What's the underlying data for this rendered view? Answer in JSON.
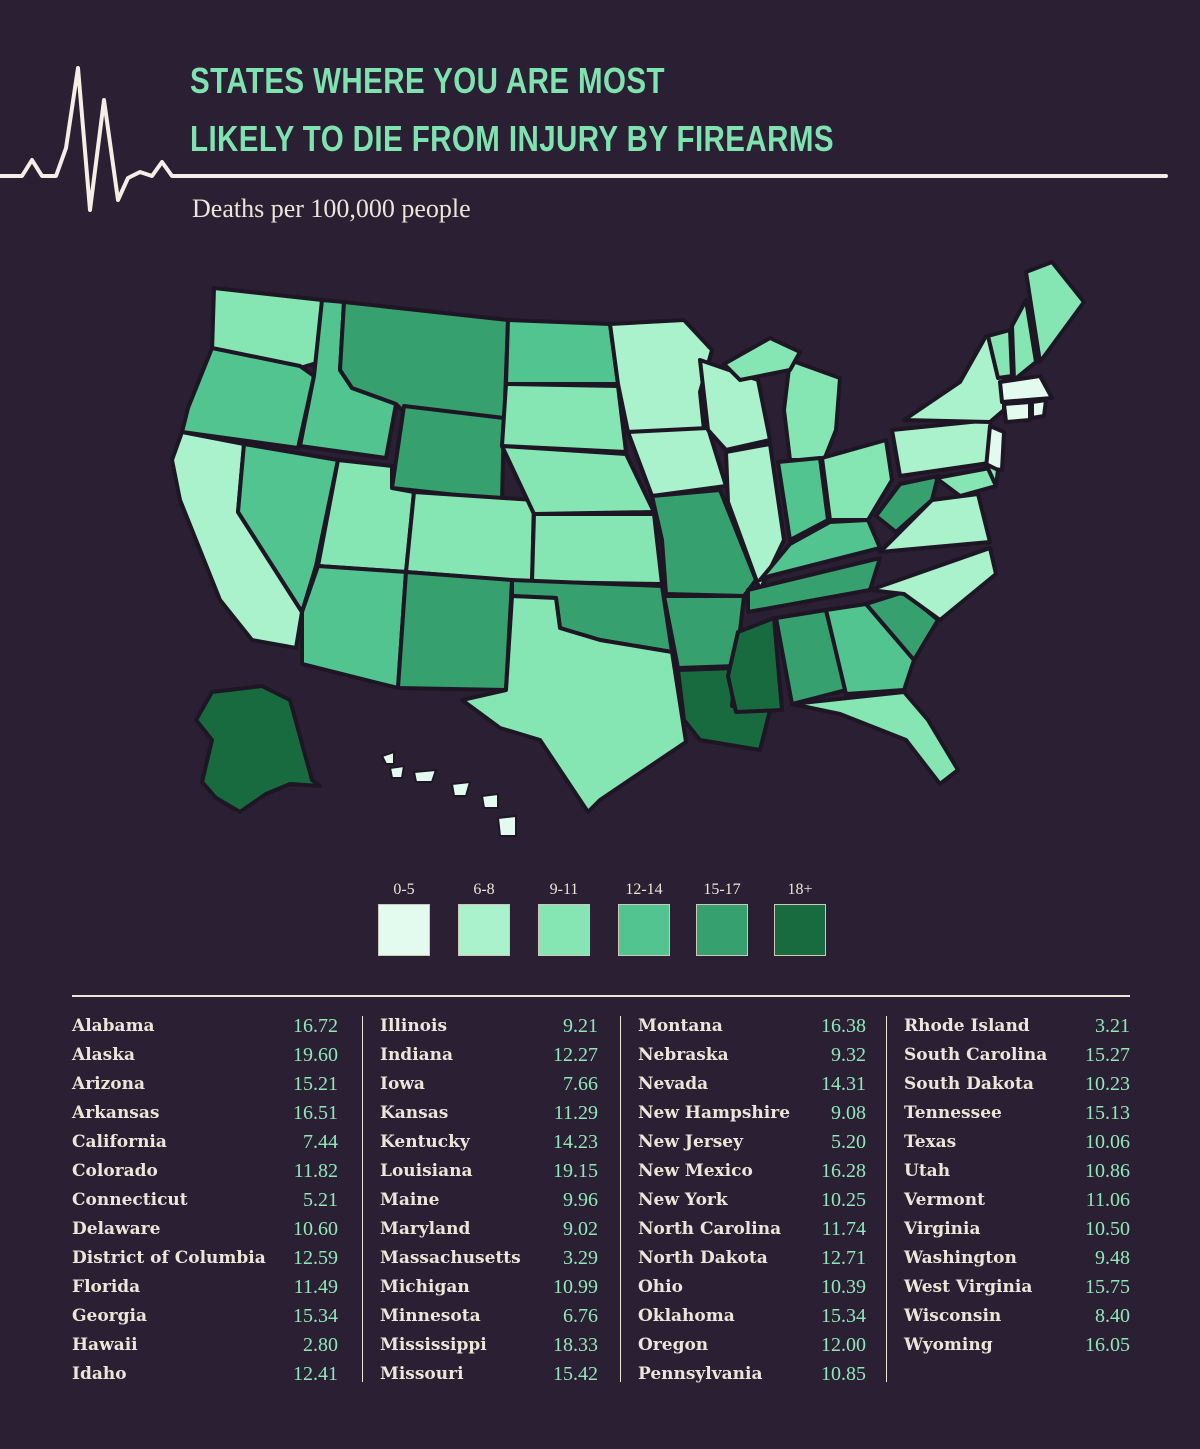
{
  "title_lines": [
    "STATES WHERE YOU ARE MOST",
    "LIKELY TO DIE FROM INJURY BY FIREARMS"
  ],
  "subtitle": "Deaths per 100,000 people",
  "colors": {
    "background": "#2a1f33",
    "title": "#7fe3b0",
    "text": "#ece6d8",
    "value": "#8fe8b8",
    "bins": [
      "#e2fbee",
      "#a9f2cb",
      "#86e6b3",
      "#52c48f",
      "#36a06e",
      "#176b3f"
    ]
  },
  "legend": [
    {
      "label": "0-5",
      "color": "#e2fbee"
    },
    {
      "label": "6-8",
      "color": "#a9f2cb"
    },
    {
      "label": "9-11",
      "color": "#86e6b3"
    },
    {
      "label": "12-14",
      "color": "#52c48f"
    },
    {
      "label": "15-17",
      "color": "#36a06e"
    },
    {
      "label": "18+",
      "color": "#176b3f"
    }
  ],
  "states": [
    {
      "name": "Alabama",
      "value": "16.72"
    },
    {
      "name": "Alaska",
      "value": "19.60"
    },
    {
      "name": "Arizona",
      "value": "15.21"
    },
    {
      "name": "Arkansas",
      "value": "16.51"
    },
    {
      "name": "California",
      "value": "7.44"
    },
    {
      "name": "Colorado",
      "value": "11.82"
    },
    {
      "name": "Connecticut",
      "value": "5.21"
    },
    {
      "name": "Delaware",
      "value": "10.60"
    },
    {
      "name": "District of Columbia",
      "value": "12.59"
    },
    {
      "name": "Florida",
      "value": "11.49"
    },
    {
      "name": "Georgia",
      "value": "15.34"
    },
    {
      "name": "Hawaii",
      "value": "2.80"
    },
    {
      "name": "Idaho",
      "value": "12.41"
    },
    {
      "name": "Illinois",
      "value": "9.21"
    },
    {
      "name": "Indiana",
      "value": "12.27"
    },
    {
      "name": "Iowa",
      "value": "7.66"
    },
    {
      "name": "Kansas",
      "value": "11.29"
    },
    {
      "name": "Kentucky",
      "value": "14.23"
    },
    {
      "name": "Louisiana",
      "value": "19.15"
    },
    {
      "name": "Maine",
      "value": "9.96"
    },
    {
      "name": "Maryland",
      "value": "9.02"
    },
    {
      "name": "Massachusetts",
      "value": "3.29"
    },
    {
      "name": "Michigan",
      "value": "10.99"
    },
    {
      "name": "Minnesota",
      "value": "6.76"
    },
    {
      "name": "Mississippi",
      "value": "18.33"
    },
    {
      "name": "Missouri",
      "value": "15.42"
    },
    {
      "name": "Montana",
      "value": "16.38"
    },
    {
      "name": "Nebraska",
      "value": "9.32"
    },
    {
      "name": "Nevada",
      "value": "14.31"
    },
    {
      "name": "New Hampshire",
      "value": "9.08"
    },
    {
      "name": "New Jersey",
      "value": "5.20"
    },
    {
      "name": "New Mexico",
      "value": "16.28"
    },
    {
      "name": "New York",
      "value": "10.25"
    },
    {
      "name": "North Carolina",
      "value": "11.74"
    },
    {
      "name": "North Dakota",
      "value": "12.71"
    },
    {
      "name": "Ohio",
      "value": "10.39"
    },
    {
      "name": "Oklahoma",
      "value": "15.34"
    },
    {
      "name": "Oregon",
      "value": "12.00"
    },
    {
      "name": "Pennsylvania",
      "value": "10.85"
    },
    {
      "name": "Rhode Island",
      "value": "3.21"
    },
    {
      "name": "South Carolina",
      "value": "15.27"
    },
    {
      "name": "South Dakota",
      "value": "10.23"
    },
    {
      "name": "Tennessee",
      "value": "15.13"
    },
    {
      "name": "Texas",
      "value": "10.06"
    },
    {
      "name": "Utah",
      "value": "10.86"
    },
    {
      "name": "Vermont",
      "value": "11.06"
    },
    {
      "name": "Virginia",
      "value": "10.50"
    },
    {
      "name": "Washington",
      "value": "9.48"
    },
    {
      "name": "West Virginia",
      "value": "15.75"
    },
    {
      "name": "Wisconsin",
      "value": "8.40"
    },
    {
      "name": "Wyoming",
      "value": "16.05"
    }
  ]
}
